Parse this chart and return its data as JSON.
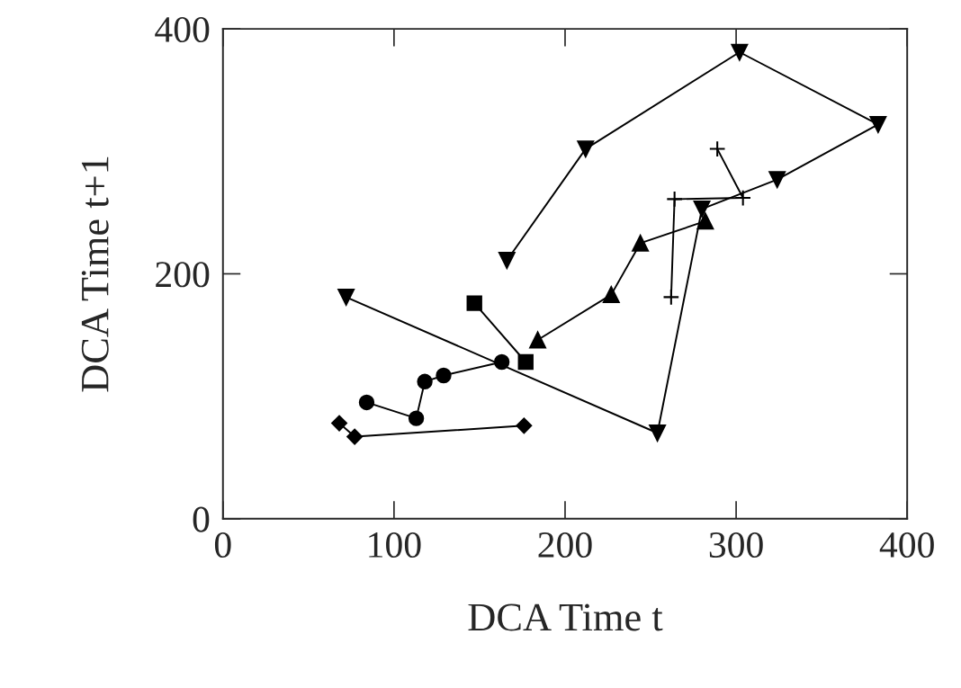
{
  "chart_data": {
    "type": "line",
    "xlabel": "DCA Time t",
    "ylabel": "DCA Time t+1",
    "xlim": [
      0,
      400
    ],
    "ylim": [
      0,
      400
    ],
    "xticks": [
      0,
      100,
      200,
      300,
      400
    ],
    "yticks": [
      0,
      200,
      400
    ],
    "grid": false,
    "series": [
      {
        "color": "#000000",
        "marker": "triangle_down",
        "x": [
          166,
          212,
          302,
          383,
          324,
          280,
          254,
          72
        ],
        "values": [
          211,
          302,
          381,
          322,
          277,
          253,
          70,
          181
        ]
      },
      {
        "color": "#000000",
        "marker": "cross",
        "x": [
          289,
          304,
          264,
          262
        ],
        "values": [
          302,
          262,
          261,
          181
        ]
      },
      {
        "color": "#000000",
        "marker": "triangle",
        "x": [
          282,
          244,
          227,
          184
        ],
        "values": [
          243,
          225,
          183,
          146
        ]
      },
      {
        "color": "#000000",
        "marker": "square",
        "x": [
          147,
          177
        ],
        "values": [
          176,
          128
        ]
      },
      {
        "color": "#000000",
        "marker": "circle",
        "x": [
          163,
          129,
          118,
          113,
          84
        ],
        "values": [
          128,
          117,
          112,
          82,
          95
        ]
      },
      {
        "color": "#000000",
        "marker": "diamond",
        "x": [
          176,
          77,
          68
        ],
        "values": [
          76,
          67,
          78
        ]
      }
    ]
  }
}
